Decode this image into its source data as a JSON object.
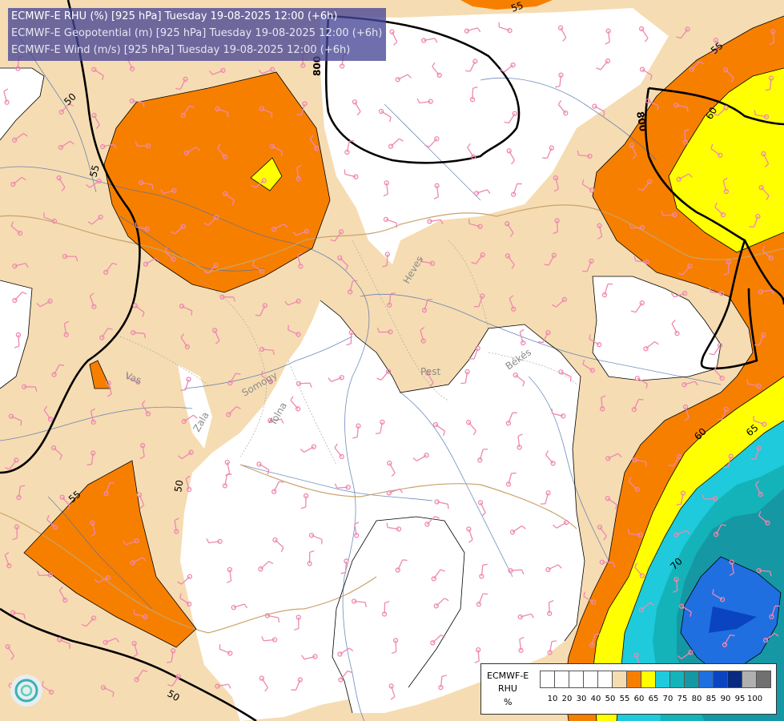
{
  "titles": {
    "line1": "ECMWF-E RHU (%) [925 hPa] Tuesday 19-08-2025 12:00 (+6h)",
    "line2": "ECMWF-E Geopotential (m) [925 hPa] Tuesday 19-08-2025 12:00 (+6h)",
    "line3": "ECMWF-E Wind (m/s) [925 hPa] Tuesday 19-08-2025 12:00 (+6h)"
  },
  "legend": {
    "title1": "ECMWF-E",
    "title2": "RHU",
    "unit": "%",
    "colors": [
      "#ffffff",
      "#ffffff",
      "#ffffff",
      "#ffffff",
      "#ffffff",
      "#f6dcb2",
      "#f77f00",
      "#ffff00",
      "#1ecadb",
      "#14b3b9",
      "#1598a4",
      "#1f6fe0",
      "#0a44c0",
      "#0a2a80",
      "#b0b0b0",
      "#707070"
    ],
    "ticks": [
      "10",
      "20",
      "30",
      "40",
      "50",
      "55",
      "60",
      "65",
      "70",
      "75",
      "80",
      "85",
      "90",
      "95",
      "100"
    ]
  },
  "contour_labels": {
    "rhu": [
      "55",
      "50",
      "55",
      "50",
      "55",
      "55",
      "60",
      "60",
      "65",
      "70"
    ],
    "geopotential": [
      "800",
      "800"
    ]
  },
  "region_labels": [
    "Heves",
    "Pest",
    "Békés",
    "Somogy",
    "Tolna",
    "Vas",
    "Zala"
  ]
}
